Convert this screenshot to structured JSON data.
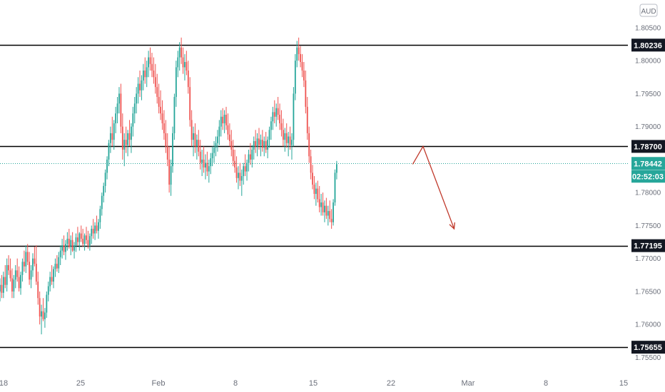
{
  "currency_badge": "AUD",
  "chart_data": {
    "type": "candlestick",
    "title": "",
    "xlabel": "",
    "ylabel": "",
    "ylim": [
      1.753,
      1.8092
    ],
    "y_ticks": [
      1.805,
      1.8,
      1.795,
      1.79,
      1.78,
      1.775,
      1.77,
      1.765,
      1.76,
      1.755
    ],
    "y_tick_labels": [
      "1.80500",
      "1.80000",
      "1.79500",
      "1.79000",
      "1.78000",
      "1.77500",
      "1.77000",
      "1.76500",
      "1.76000",
      "1.75500"
    ],
    "x_ticks": [
      "18",
      "25",
      "Feb",
      "8",
      "15",
      "22",
      "Mar",
      "8",
      "15"
    ],
    "horizontal_levels": [
      {
        "value": 1.80236,
        "label": "1.80236"
      },
      {
        "value": 1.787,
        "label": "1.78700"
      },
      {
        "value": 1.77195,
        "label": "1.77195"
      },
      {
        "value": 1.75655,
        "label": "1.75655"
      }
    ],
    "current_price": {
      "value": 1.78442,
      "label": "1.78442",
      "countdown": "02:52:03"
    },
    "colors": {
      "up": "#26a69a",
      "down": "#ef5350",
      "level": "#000000",
      "current": "#26a69a",
      "arrow": "#c0392b"
    },
    "projection": {
      "type": "arrow",
      "points": [
        {
          "index": 239,
          "price": 1.7843
        },
        {
          "index": 245,
          "price": 1.787
        },
        {
          "index": 263,
          "price": 1.7745
        }
      ]
    },
    "candles": [
      [
        1.765,
        1.767,
        1.7635,
        1.766
      ],
      [
        1.766,
        1.7675,
        1.764,
        1.7648
      ],
      [
        1.7648,
        1.768,
        1.764,
        1.7672
      ],
      [
        1.7672,
        1.769,
        1.7655,
        1.766
      ],
      [
        1.766,
        1.77,
        1.765,
        1.769
      ],
      [
        1.769,
        1.7705,
        1.7675,
        1.7682
      ],
      [
        1.7682,
        1.77,
        1.7665,
        1.767
      ],
      [
        1.767,
        1.7685,
        1.764,
        1.765
      ],
      [
        1.765,
        1.7675,
        1.764,
        1.7668
      ],
      [
        1.7668,
        1.769,
        1.7655,
        1.7682
      ],
      [
        1.7682,
        1.77,
        1.7665,
        1.7672
      ],
      [
        1.7672,
        1.7688,
        1.765,
        1.7655
      ],
      [
        1.7655,
        1.768,
        1.7645,
        1.7675
      ],
      [
        1.7675,
        1.77,
        1.7665,
        1.7695
      ],
      [
        1.7695,
        1.7712,
        1.768,
        1.7688
      ],
      [
        1.7688,
        1.772,
        1.7678,
        1.771
      ],
      [
        1.771,
        1.7722,
        1.769,
        1.7695
      ],
      [
        1.7695,
        1.771,
        1.766,
        1.7668
      ],
      [
        1.7668,
        1.769,
        1.7655,
        1.7682
      ],
      [
        1.7682,
        1.7708,
        1.7672,
        1.77
      ],
      [
        1.77,
        1.7718,
        1.7688,
        1.7692
      ],
      [
        1.7692,
        1.772,
        1.766,
        1.7665
      ],
      [
        1.7665,
        1.768,
        1.763,
        1.764
      ],
      [
        1.764,
        1.765,
        1.76,
        1.7612
      ],
      [
        1.7612,
        1.763,
        1.7585,
        1.762
      ],
      [
        1.762,
        1.764,
        1.7605,
        1.7608
      ],
      [
        1.7608,
        1.7625,
        1.7595,
        1.7618
      ],
      [
        1.7618,
        1.765,
        1.761,
        1.7645
      ],
      [
        1.7645,
        1.7665,
        1.7635,
        1.7658
      ],
      [
        1.7658,
        1.768,
        1.765,
        1.7672
      ],
      [
        1.7672,
        1.769,
        1.766,
        1.7665
      ],
      [
        1.7665,
        1.7688,
        1.7655,
        1.7684
      ],
      [
        1.7684,
        1.77,
        1.7672,
        1.7692
      ],
      [
        1.7692,
        1.7705,
        1.768,
        1.7685
      ],
      [
        1.7685,
        1.771,
        1.7678,
        1.7702
      ],
      [
        1.7702,
        1.772,
        1.769,
        1.7712
      ],
      [
        1.7712,
        1.773,
        1.77,
        1.772
      ],
      [
        1.772,
        1.7735,
        1.7705,
        1.771
      ],
      [
        1.771,
        1.7728,
        1.7698,
        1.7722
      ],
      [
        1.7722,
        1.774,
        1.7712,
        1.773
      ],
      [
        1.773,
        1.7745,
        1.7715,
        1.7718
      ],
      [
        1.7718,
        1.7735,
        1.7705,
        1.7728
      ],
      [
        1.7728,
        1.774,
        1.771,
        1.7712
      ],
      [
        1.7712,
        1.7725,
        1.77,
        1.772
      ],
      [
        1.772,
        1.7738,
        1.771,
        1.7732
      ],
      [
        1.7732,
        1.7748,
        1.772,
        1.7725
      ],
      [
        1.7725,
        1.774,
        1.7712,
        1.7738
      ],
      [
        1.7738,
        1.775,
        1.7725,
        1.773
      ],
      [
        1.773,
        1.7745,
        1.7718,
        1.7722
      ],
      [
        1.7722,
        1.7738,
        1.7712,
        1.7735
      ],
      [
        1.7735,
        1.7748,
        1.7722,
        1.7728
      ],
      [
        1.7728,
        1.7742,
        1.7715,
        1.772
      ],
      [
        1.772,
        1.7738,
        1.7712,
        1.7734
      ],
      [
        1.7734,
        1.775,
        1.7722,
        1.7745
      ],
      [
        1.7745,
        1.776,
        1.773,
        1.7738
      ],
      [
        1.7738,
        1.7755,
        1.7728,
        1.775
      ],
      [
        1.775,
        1.7765,
        1.7738,
        1.7742
      ],
      [
        1.7742,
        1.776,
        1.773,
        1.7755
      ],
      [
        1.7755,
        1.778,
        1.7745,
        1.7775
      ],
      [
        1.7775,
        1.78,
        1.7765,
        1.7795
      ],
      [
        1.7795,
        1.7815,
        1.7785,
        1.781
      ],
      [
        1.781,
        1.7835,
        1.78,
        1.783
      ],
      [
        1.783,
        1.7855,
        1.782,
        1.785
      ],
      [
        1.785,
        1.788,
        1.784,
        1.7875
      ],
      [
        1.7875,
        1.79,
        1.786,
        1.789
      ],
      [
        1.789,
        1.7915,
        1.787,
        1.788
      ],
      [
        1.788,
        1.791,
        1.7865,
        1.7905
      ],
      [
        1.7905,
        1.793,
        1.789,
        1.792
      ],
      [
        1.792,
        1.7945,
        1.7905,
        1.7935
      ],
      [
        1.7935,
        1.796,
        1.792,
        1.795
      ],
      [
        1.795,
        1.7965,
        1.789,
        1.79
      ],
      [
        1.79,
        1.792,
        1.785,
        1.7865
      ],
      [
        1.7865,
        1.789,
        1.784,
        1.788
      ],
      [
        1.788,
        1.79,
        1.786,
        1.7872
      ],
      [
        1.7872,
        1.7895,
        1.7855,
        1.789
      ],
      [
        1.789,
        1.791,
        1.787,
        1.788
      ],
      [
        1.788,
        1.7905,
        1.786,
        1.79
      ],
      [
        1.79,
        1.793,
        1.7885,
        1.792
      ],
      [
        1.792,
        1.7945,
        1.7905,
        1.7935
      ],
      [
        1.7935,
        1.796,
        1.792,
        1.795
      ],
      [
        1.795,
        1.7975,
        1.7935,
        1.7965
      ],
      [
        1.7965,
        1.7985,
        1.7945,
        1.7955
      ],
      [
        1.7955,
        1.7978,
        1.794,
        1.797
      ],
      [
        1.797,
        1.7995,
        1.7955,
        1.7985
      ],
      [
        1.7985,
        1.8005,
        1.7965,
        1.7975
      ],
      [
        1.7975,
        1.8,
        1.796,
        1.799
      ],
      [
        1.799,
        1.8015,
        1.7975,
        1.8005
      ],
      [
        1.8005,
        1.802,
        1.7985,
        1.7995
      ],
      [
        1.7995,
        1.8012,
        1.7975,
        1.7985
      ],
      [
        1.7985,
        1.8005,
        1.7965,
        1.7975
      ],
      [
        1.7975,
        1.7995,
        1.795,
        1.796
      ],
      [
        1.796,
        1.798,
        1.7935,
        1.7945
      ],
      [
        1.7945,
        1.7965,
        1.792,
        1.793
      ],
      [
        1.793,
        1.7955,
        1.791,
        1.792
      ],
      [
        1.792,
        1.794,
        1.7895,
        1.7905
      ],
      [
        1.7905,
        1.7925,
        1.788,
        1.789
      ],
      [
        1.789,
        1.791,
        1.786,
        1.787
      ],
      [
        1.787,
        1.789,
        1.784,
        1.785
      ],
      [
        1.785,
        1.787,
        1.78,
        1.7812
      ],
      [
        1.7812,
        1.785,
        1.7795,
        1.784
      ],
      [
        1.784,
        1.79,
        1.783,
        1.789
      ],
      [
        1.789,
        1.795,
        1.788,
        1.7945
      ],
      [
        1.7945,
        1.8,
        1.793,
        1.799
      ],
      [
        1.799,
        1.8015,
        1.7975,
        1.8005
      ],
      [
        1.8005,
        1.8028,
        1.7985,
        1.802
      ],
      [
        1.802,
        1.8035,
        1.7995,
        1.8005
      ],
      [
        1.8005,
        1.802,
        1.798,
        1.799
      ],
      [
        1.799,
        1.801,
        1.797,
        1.7998
      ],
      [
        1.7998,
        1.8015,
        1.7978,
        1.7985
      ],
      [
        1.7985,
        1.8,
        1.795,
        1.796
      ],
      [
        1.796,
        1.7975,
        1.79,
        1.791
      ],
      [
        1.791,
        1.7925,
        1.787,
        1.788
      ],
      [
        1.788,
        1.79,
        1.7855,
        1.789
      ],
      [
        1.789,
        1.7905,
        1.786,
        1.787
      ],
      [
        1.787,
        1.7888,
        1.785,
        1.788
      ],
      [
        1.788,
        1.7895,
        1.7855,
        1.7862
      ],
      [
        1.7862,
        1.788,
        1.7835,
        1.7845
      ],
      [
        1.7845,
        1.7865,
        1.7825,
        1.785
      ],
      [
        1.785,
        1.787,
        1.783,
        1.7838
      ],
      [
        1.7838,
        1.7858,
        1.782,
        1.7845
      ],
      [
        1.7845,
        1.7862,
        1.7825,
        1.7832
      ],
      [
        1.7832,
        1.785,
        1.7815,
        1.784
      ],
      [
        1.784,
        1.786,
        1.7828,
        1.7852
      ],
      [
        1.7852,
        1.787,
        1.784,
        1.786
      ],
      [
        1.786,
        1.7878,
        1.7845,
        1.7868
      ],
      [
        1.7868,
        1.7885,
        1.7855,
        1.7875
      ],
      [
        1.7875,
        1.7895,
        1.7862,
        1.7885
      ],
      [
        1.7885,
        1.791,
        1.7872,
        1.79
      ],
      [
        1.79,
        1.7925,
        1.7885,
        1.7915
      ],
      [
        1.7915,
        1.7928,
        1.7895,
        1.7905
      ],
      [
        1.7905,
        1.7925,
        1.789,
        1.7918
      ],
      [
        1.7918,
        1.793,
        1.7895,
        1.7902
      ],
      [
        1.7902,
        1.792,
        1.788,
        1.7888
      ],
      [
        1.7888,
        1.7905,
        1.787,
        1.7878
      ],
      [
        1.7878,
        1.7895,
        1.7855,
        1.7865
      ],
      [
        1.7865,
        1.788,
        1.784,
        1.7848
      ],
      [
        1.7848,
        1.7865,
        1.783,
        1.7838
      ],
      [
        1.7838,
        1.7855,
        1.7815,
        1.7822
      ],
      [
        1.7822,
        1.784,
        1.7805,
        1.783
      ],
      [
        1.783,
        1.7845,
        1.781,
        1.7818
      ],
      [
        1.7818,
        1.7835,
        1.7795,
        1.7825
      ],
      [
        1.7825,
        1.7845,
        1.7812,
        1.784
      ],
      [
        1.784,
        1.7858,
        1.7825,
        1.7832
      ],
      [
        1.7832,
        1.785,
        1.7818,
        1.7845
      ],
      [
        1.7845,
        1.7865,
        1.7832,
        1.7858
      ],
      [
        1.7858,
        1.7875,
        1.7842,
        1.785
      ],
      [
        1.785,
        1.7872,
        1.7838,
        1.7865
      ],
      [
        1.7865,
        1.7885,
        1.785,
        1.7878
      ],
      [
        1.7878,
        1.7895,
        1.786,
        1.787
      ],
      [
        1.787,
        1.789,
        1.7855,
        1.7882
      ],
      [
        1.7882,
        1.7898,
        1.7865,
        1.7872
      ],
      [
        1.7872,
        1.7888,
        1.7855,
        1.788
      ],
      [
        1.788,
        1.7895,
        1.7862,
        1.7868
      ],
      [
        1.7868,
        1.7885,
        1.7855,
        1.7878
      ],
      [
        1.7878,
        1.7892,
        1.786,
        1.7865
      ],
      [
        1.7865,
        1.7885,
        1.7852,
        1.788
      ],
      [
        1.788,
        1.79,
        1.7868,
        1.7895
      ],
      [
        1.7895,
        1.7915,
        1.788,
        1.7908
      ],
      [
        1.7908,
        1.793,
        1.7895,
        1.7922
      ],
      [
        1.7922,
        1.794,
        1.7905,
        1.7915
      ],
      [
        1.7915,
        1.7935,
        1.79,
        1.7928
      ],
      [
        1.7928,
        1.7945,
        1.791,
        1.7918
      ],
      [
        1.7918,
        1.7935,
        1.7895,
        1.7905
      ],
      [
        1.7905,
        1.7925,
        1.7885,
        1.7895
      ],
      [
        1.7895,
        1.7912,
        1.787,
        1.788
      ],
      [
        1.788,
        1.7898,
        1.7862,
        1.789
      ],
      [
        1.789,
        1.7905,
        1.7868,
        1.7875
      ],
      [
        1.7875,
        1.7892,
        1.7855,
        1.7885
      ],
      [
        1.7885,
        1.79,
        1.7865,
        1.7872
      ],
      [
        1.7872,
        1.789,
        1.785,
        1.788
      ],
      [
        1.788,
        1.796,
        1.787,
        1.795
      ],
      [
        1.795,
        1.801,
        1.794,
        1.8
      ],
      [
        1.8,
        1.803,
        1.799,
        1.802
      ],
      [
        1.802,
        1.8035,
        1.8,
        1.801
      ],
      [
        1.801,
        1.8022,
        1.799,
        1.7998
      ],
      [
        1.7998,
        1.801,
        1.7975,
        1.7985
      ],
      [
        1.7985,
        1.7998,
        1.796,
        1.797
      ],
      [
        1.797,
        1.7985,
        1.792,
        1.793
      ],
      [
        1.793,
        1.7945,
        1.788,
        1.789
      ],
      [
        1.789,
        1.79,
        1.7845,
        1.7855
      ],
      [
        1.7855,
        1.7865,
        1.782,
        1.783
      ],
      [
        1.783,
        1.7842,
        1.7805,
        1.7812
      ],
      [
        1.7812,
        1.7825,
        1.779,
        1.7798
      ],
      [
        1.7798,
        1.7815,
        1.778,
        1.7806
      ],
      [
        1.7806,
        1.7818,
        1.7785,
        1.779
      ],
      [
        1.779,
        1.781,
        1.777,
        1.7778
      ],
      [
        1.7778,
        1.7798,
        1.7765,
        1.7785
      ],
      [
        1.7785,
        1.78,
        1.7765,
        1.777
      ],
      [
        1.777,
        1.7788,
        1.7755,
        1.778
      ],
      [
        1.778,
        1.7792,
        1.776,
        1.7765
      ],
      [
        1.7765,
        1.778,
        1.775,
        1.7772
      ],
      [
        1.7772,
        1.7788,
        1.7755,
        1.776
      ],
      [
        1.776,
        1.7775,
        1.7745,
        1.7755
      ],
      [
        1.7755,
        1.779,
        1.775,
        1.7785
      ],
      [
        1.7785,
        1.7835,
        1.778,
        1.783
      ],
      [
        1.783,
        1.7848,
        1.782,
        1.7843
      ]
    ]
  }
}
